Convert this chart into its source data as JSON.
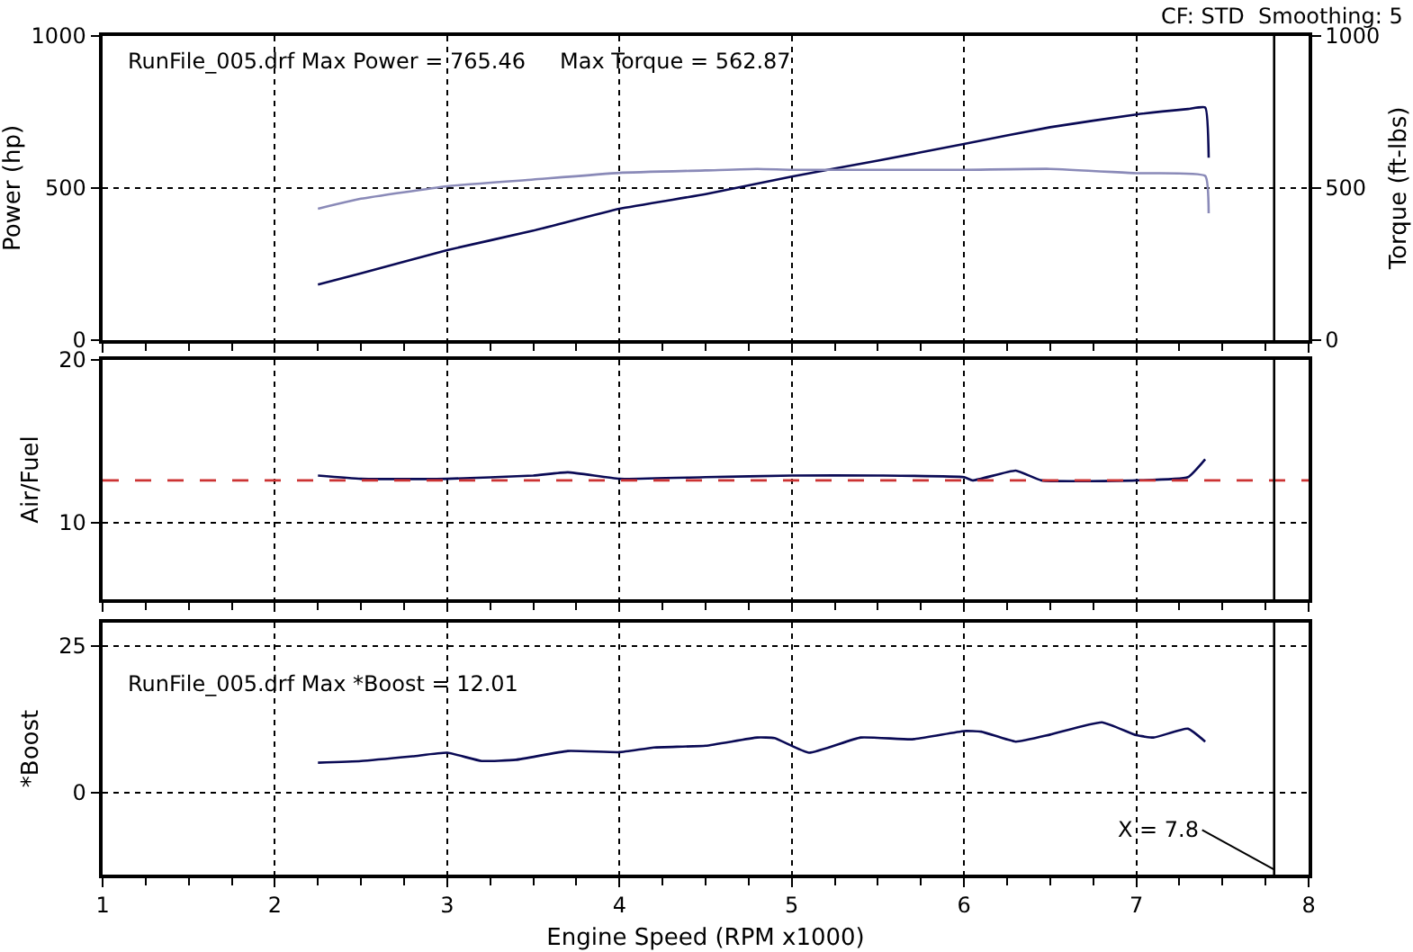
{
  "chart_data": [
    {
      "type": "line",
      "ylabel": "Power (hp)",
      "y2label": "Torque (ft-lbs)",
      "annotations": [
        "RunFile_005.drf Max Power = 765.46     Max Torque = 562.87",
        "CF: STD  Smoothing: 5"
      ],
      "series": [
        {
          "color": "#0a0a55",
          "x": [
            2.25,
            2.5,
            3,
            3.5,
            4,
            4.5,
            5,
            5.5,
            6,
            6.5,
            7,
            7.3,
            7.4,
            7.42
          ],
          "values": [
            183,
            220,
            296,
            360,
            432,
            480,
            538,
            590,
            645,
            700,
            742,
            760,
            765,
            600
          ]
        },
        {
          "color": "#8a8ab8",
          "axis": "y2",
          "x": [
            2.25,
            2.5,
            3,
            3.5,
            4,
            4.5,
            4.8,
            5,
            5.5,
            6,
            6.5,
            7,
            7.4,
            7.42
          ],
          "values": [
            432,
            465,
            506,
            528,
            550,
            558,
            563,
            560,
            560,
            560,
            563,
            549,
            540,
            417
          ]
        }
      ],
      "xlim": [
        1,
        8
      ],
      "xticks": [
        1,
        2,
        3,
        4,
        5,
        6,
        7,
        8
      ],
      "ylim": [
        0,
        1000
      ],
      "yticks": [
        0,
        500,
        1000
      ],
      "y2lim": [
        0,
        1000
      ],
      "y2ticks": [
        0,
        500,
        1000
      ],
      "ref_lines": [
        {
          "axis": "x",
          "value": 7.8,
          "color": "#000000",
          "line_style": "solid"
        }
      ],
      "grid": true,
      "tick_labels": "y",
      "marker": "none",
      "line_style": "solid"
    },
    {
      "type": "line",
      "ylabel": "Air/Fuel",
      "series": [
        {
          "color": "#0a0a55",
          "x": [
            2.25,
            2.5,
            3,
            3.5,
            3.7,
            4,
            4.5,
            5,
            5.5,
            6,
            6.05,
            6.3,
            6.45,
            7,
            7.3,
            7.4
          ],
          "values": [
            12.9,
            12.7,
            12.7,
            12.9,
            13.1,
            12.7,
            12.8,
            12.9,
            12.9,
            12.8,
            12.6,
            13.2,
            12.6,
            12.6,
            12.8,
            13.9
          ]
        }
      ],
      "xlim": [
        1,
        8
      ],
      "xticks": [
        1,
        2,
        3,
        4,
        5,
        6,
        7,
        8
      ],
      "ylim": [
        5.3,
        20
      ],
      "yticks": [
        10,
        20
      ],
      "ref_lines": [
        {
          "axis": "y",
          "value": 12.6,
          "color": "#cc3333",
          "line_style": "dashed"
        },
        {
          "axis": "x",
          "value": 7.8,
          "color": "#000000",
          "line_style": "solid"
        }
      ],
      "grid": true,
      "tick_labels": "y",
      "marker": "none",
      "line_style": "solid"
    },
    {
      "type": "line",
      "ylabel": "*Boost",
      "xlabel": "Engine Speed (RPM x1000)",
      "annotations": [
        "RunFile_005.drf Max *Boost = 12.01"
      ],
      "series": [
        {
          "color": "#0a0a55",
          "x": [
            2.25,
            2.5,
            2.8,
            3.0,
            3.2,
            3.4,
            3.7,
            4.0,
            4.2,
            4.5,
            4.8,
            4.9,
            5.1,
            5.4,
            5.7,
            6.0,
            6.1,
            6.3,
            6.5,
            6.8,
            7.0,
            7.1,
            7.3,
            7.4
          ],
          "values": [
            5.1,
            5.4,
            6.2,
            6.8,
            5.4,
            5.6,
            7.1,
            6.9,
            7.7,
            8.0,
            9.4,
            9.3,
            6.8,
            9.4,
            9.1,
            10.5,
            10.4,
            8.7,
            9.9,
            12.0,
            9.8,
            9.4,
            10.9,
            8.7
          ]
        }
      ],
      "xlim": [
        1,
        8
      ],
      "xticks": [
        1,
        2,
        3,
        4,
        5,
        6,
        7,
        8
      ],
      "ylim": [
        -14,
        29
      ],
      "yticks": [
        0,
        25
      ],
      "ref_lines": [
        {
          "axis": "x",
          "value": 7.8,
          "label": "X = 7.8",
          "color": "#000000",
          "line_style": "solid"
        }
      ],
      "grid": true,
      "marker": "none",
      "line_style": "solid"
    }
  ]
}
